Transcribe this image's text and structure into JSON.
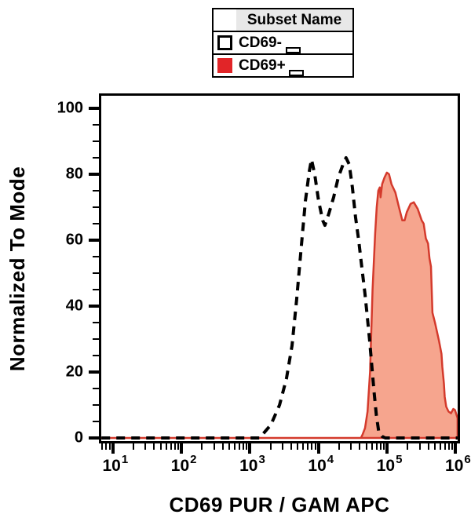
{
  "legend": {
    "header": "Subset Name",
    "rows": [
      {
        "label": "CD69-",
        "swatch_color": "#ffffff",
        "swatch_border": "#000000"
      },
      {
        "label": "CD69+",
        "swatch_color": "#e12528",
        "swatch_border": "#e12528"
      }
    ]
  },
  "colors": {
    "background": "#ffffff",
    "frame": "#000000",
    "legend_header_bg": "#e8e8e8",
    "neg_curve": "#000000",
    "pos_stroke": "#d43a2c",
    "pos_fill": "#f6a58e"
  },
  "chart_data": {
    "type": "area",
    "title": "",
    "xlabel": "CD69 PUR / GAM APC",
    "ylabel": "Normalized To Mode",
    "xscale": "log",
    "xlim_log10": [
      0.83,
      6.03
    ],
    "ylim": [
      0,
      105
    ],
    "x_ticks_decades": [
      1,
      2,
      3,
      4,
      5,
      6
    ],
    "x_tick_base": "10",
    "y_ticks": [
      0,
      20,
      40,
      60,
      80,
      100
    ],
    "y_minor_step": 5,
    "grid": false,
    "legend_position": "top-center",
    "series": [
      {
        "name": "CD69-",
        "type": "histogram-outline",
        "line_style": "dashed",
        "color": "#000000",
        "fill": "none",
        "points": [
          [
            6.8,
            0
          ],
          [
            1365,
            0
          ],
          [
            1520,
            1
          ],
          [
            2020,
            4
          ],
          [
            2700,
            10
          ],
          [
            3400,
            18
          ],
          [
            4100,
            28
          ],
          [
            4800,
            42
          ],
          [
            5600,
            58
          ],
          [
            6450,
            72
          ],
          [
            7350,
            81
          ],
          [
            7900,
            84.5
          ],
          [
            8800,
            80
          ],
          [
            10000,
            72
          ],
          [
            11500,
            66
          ],
          [
            12400,
            64.5
          ],
          [
            14100,
            68
          ],
          [
            16600,
            73
          ],
          [
            19400,
            79
          ],
          [
            22800,
            83
          ],
          [
            25200,
            85
          ],
          [
            28100,
            83
          ],
          [
            31200,
            76
          ],
          [
            34700,
            67
          ],
          [
            38500,
            60
          ],
          [
            42700,
            52
          ],
          [
            47500,
            44
          ],
          [
            51300,
            37
          ],
          [
            55400,
            30
          ],
          [
            59800,
            22
          ],
          [
            64600,
            14
          ],
          [
            69800,
            7
          ],
          [
            75400,
            2
          ],
          [
            84300,
            0.5
          ],
          [
            94200,
            0
          ],
          [
            1070000,
            0
          ]
        ]
      },
      {
        "name": "CD69+",
        "type": "histogram-filled",
        "line_style": "solid",
        "color": "#d43a2c",
        "fill": "#f6a58e",
        "points": [
          [
            6.8,
            0
          ],
          [
            41500,
            0
          ],
          [
            43800,
            1
          ],
          [
            47700,
            3
          ],
          [
            51900,
            8
          ],
          [
            56500,
            20
          ],
          [
            61500,
            45
          ],
          [
            67000,
            62
          ],
          [
            70600,
            70
          ],
          [
            74400,
            75
          ],
          [
            78400,
            76
          ],
          [
            80500,
            73
          ],
          [
            84800,
            77
          ],
          [
            91700,
            79
          ],
          [
            99200,
            80.5
          ],
          [
            107000,
            80
          ],
          [
            116000,
            77
          ],
          [
            132000,
            74.5
          ],
          [
            147000,
            70.5
          ],
          [
            167000,
            66
          ],
          [
            180000,
            66
          ],
          [
            194000,
            68.5
          ],
          [
            220000,
            71
          ],
          [
            245000,
            71.5
          ],
          [
            280000,
            69.5
          ],
          [
            320000,
            66
          ],
          [
            342000,
            65
          ],
          [
            368000,
            60.5
          ],
          [
            396000,
            59
          ],
          [
            416000,
            54.5
          ],
          [
            437000,
            52
          ],
          [
            460000,
            38
          ],
          [
            500000,
            35
          ],
          [
            572000,
            29.5
          ],
          [
            622000,
            25.5
          ],
          [
            640000,
            21.5
          ],
          [
            675000,
            16.5
          ],
          [
            693000,
            12.5
          ],
          [
            730000,
            9.5
          ],
          [
            790000,
            8
          ],
          [
            856000,
            7.5
          ],
          [
            927000,
            8.8
          ],
          [
            976000,
            8.5
          ],
          [
            1070000,
            6
          ],
          [
            1070000,
            0
          ]
        ]
      }
    ]
  }
}
